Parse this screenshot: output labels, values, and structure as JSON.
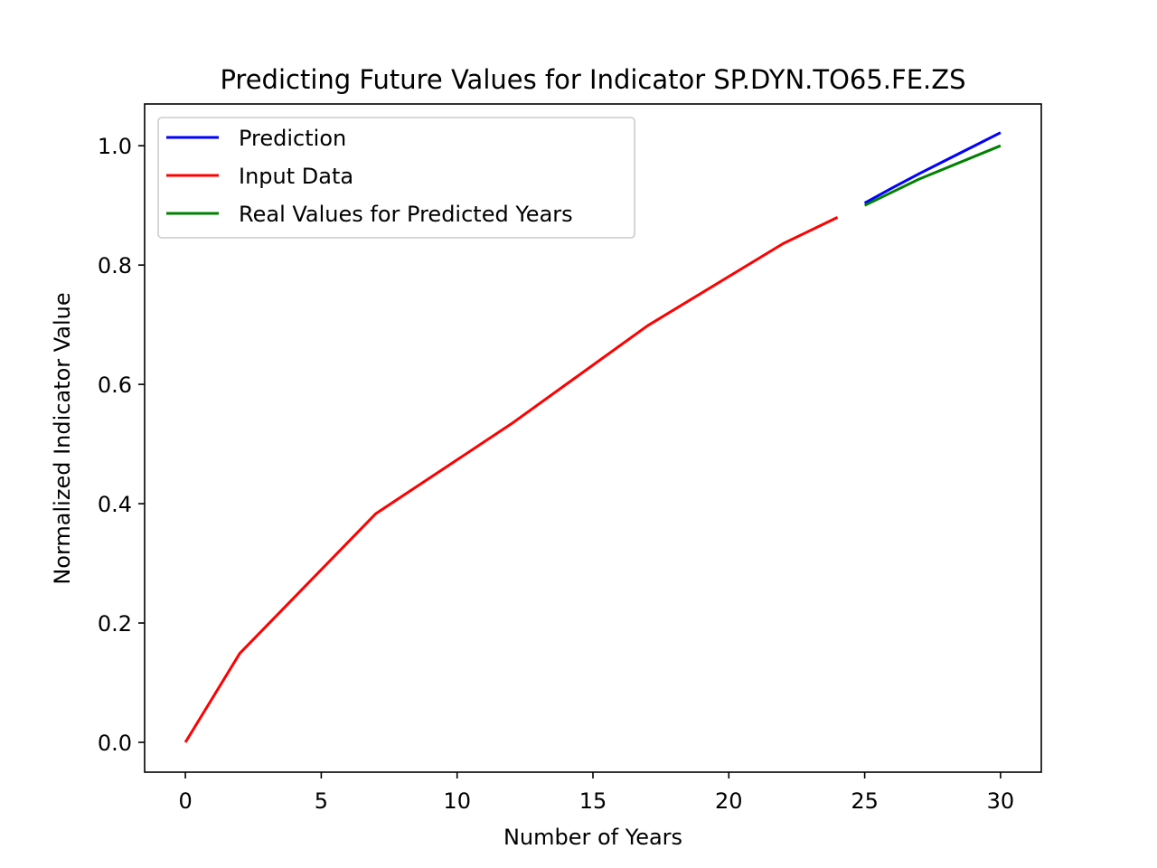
{
  "chart_data": {
    "type": "line",
    "title": "Predicting Future Values for Indicator SP.DYN.TO65.FE.ZS",
    "xlabel": "Number of Years",
    "ylabel": "Normalized Indicator Value",
    "xlim": [
      -1.5,
      31.5
    ],
    "ylim": [
      -0.05,
      1.07
    ],
    "xticks": [
      0,
      5,
      10,
      15,
      20,
      25,
      30
    ],
    "xtick_labels": [
      "0",
      "5",
      "10",
      "15",
      "20",
      "25",
      "30"
    ],
    "yticks": [
      0.0,
      0.2,
      0.4,
      0.6,
      0.8,
      1.0
    ],
    "ytick_labels": [
      "0.0",
      "0.2",
      "0.4",
      "0.6",
      "0.8",
      "1.0"
    ],
    "grid": false,
    "legend_position": "upper-left",
    "series": [
      {
        "name": "Prediction",
        "color": "#0000ff",
        "x": [
          25,
          26,
          27,
          28,
          29,
          30
        ],
        "y": [
          0.904,
          0.929,
          0.953,
          0.976,
          0.999,
          1.022
        ]
      },
      {
        "name": "Input Data",
        "color": "#ff0000",
        "x": [
          0,
          2,
          7,
          12,
          17,
          22,
          24
        ],
        "y": [
          0.0,
          0.149,
          0.383,
          0.534,
          0.698,
          0.836,
          0.88
        ]
      },
      {
        "name": "Real Values for Predicted Years",
        "color": "#008000",
        "x": [
          25,
          27,
          30
        ],
        "y": [
          0.9,
          0.944,
          1.0
        ]
      }
    ]
  }
}
